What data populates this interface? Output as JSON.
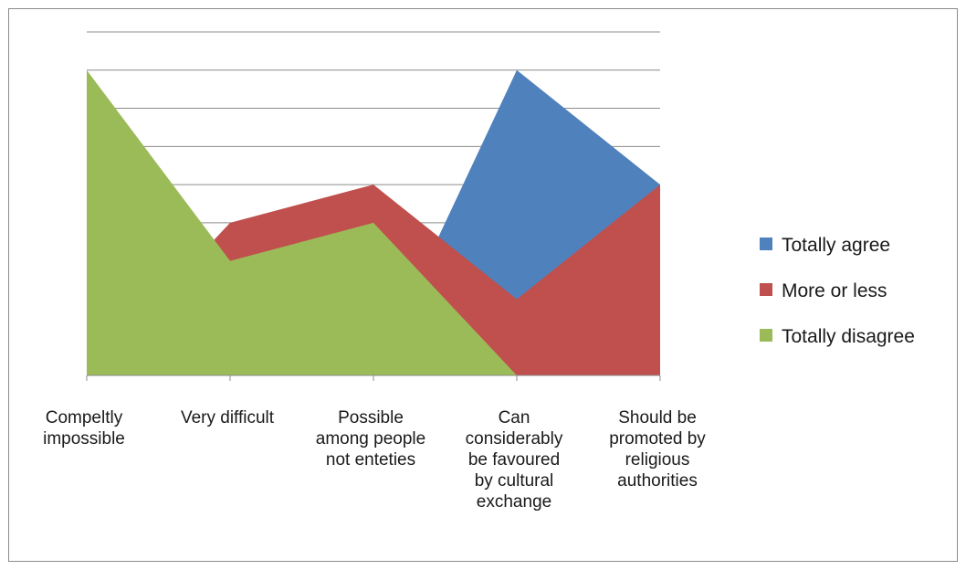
{
  "chart_data": {
    "type": "area",
    "categories": [
      [
        "Compeltly",
        "impossible"
      ],
      [
        "Very difficult"
      ],
      [
        "Possible",
        "among people",
        "not enteties"
      ],
      [
        "Can",
        "considerably",
        "be favoured",
        "by cultural",
        "exchange"
      ],
      [
        "Should be",
        "promoted by",
        "religious",
        "authorities"
      ]
    ],
    "series": [
      {
        "name": "Totally agree",
        "values": [
          0,
          0,
          0,
          8,
          5
        ],
        "color": "#4f81bd"
      },
      {
        "name": "More or less",
        "values": [
          0,
          4,
          5,
          2,
          5
        ],
        "color": "#c0504d"
      },
      {
        "name": "Totally disagree",
        "values": [
          8,
          3,
          4,
          0,
          0
        ],
        "color": "#9bbb59"
      }
    ],
    "ylim": [
      0,
      9
    ],
    "y_major_step": 1,
    "grid": true,
    "legend_position": "right",
    "title": "",
    "xlabel": "",
    "ylabel": ""
  }
}
